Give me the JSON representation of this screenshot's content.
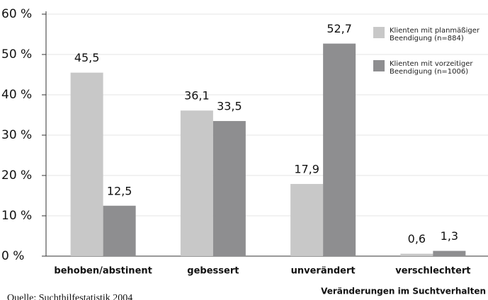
{
  "chart_data": {
    "type": "bar",
    "categories": [
      "behoben/abstinent",
      "gebessert",
      "unverändert",
      "verschlechtert"
    ],
    "series": [
      {
        "name": "Klienten mit planmäßiger Beendigung (n=884)",
        "color": "#c8c8c8",
        "values": [
          45.5,
          36.1,
          17.9,
          0.6
        ],
        "value_labels": [
          "45,5",
          "36,1",
          "17,9",
          "0,6"
        ]
      },
      {
        "name": "Klienten mit vorzeitiger Beendigung (n=1006)",
        "color": "#8e8e90",
        "values": [
          12.5,
          33.5,
          52.7,
          1.3
        ],
        "value_labels": [
          "12,5",
          "33,5",
          "52,7",
          "1,3"
        ]
      }
    ],
    "ylim": [
      0,
      60
    ],
    "yticks": [
      {
        "value": 0,
        "label": "0 %"
      },
      {
        "value": 10,
        "label": "10 %"
      },
      {
        "value": 20,
        "label": "20 %"
      },
      {
        "value": 30,
        "label": "30 %"
      },
      {
        "value": 40,
        "label": "40 %"
      },
      {
        "value": 50,
        "label": "50 %"
      },
      {
        "value": 60,
        "label": "60 %"
      }
    ],
    "xlabel": "Veränderungen im Suchtverhalten",
    "source": "Quelle: Suchthilfestatistik 2004",
    "legend": "upper right",
    "grid": true
  }
}
